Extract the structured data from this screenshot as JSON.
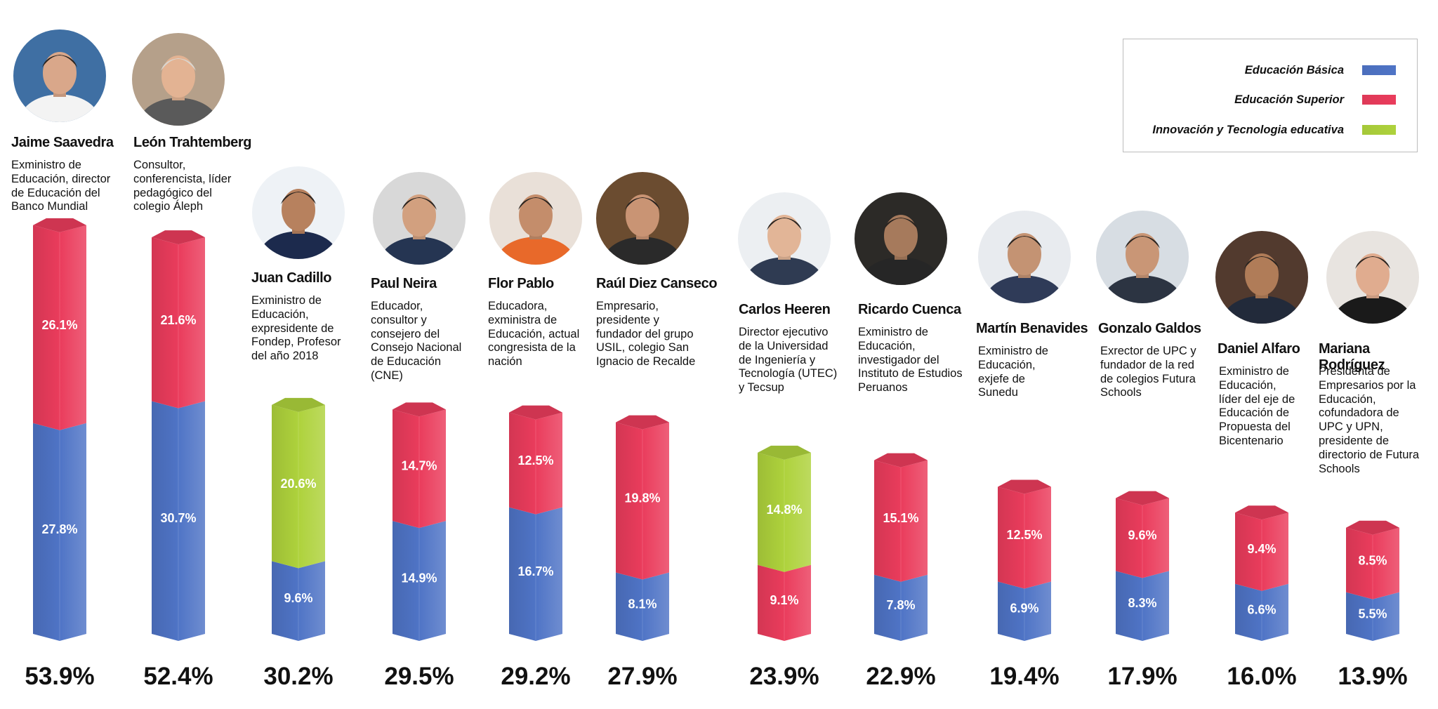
{
  "colors": {
    "basica": "#4f74c6",
    "superior": "#ea3c5c",
    "innovacion": "#aed23c"
  },
  "legend": [
    {
      "label": "Educación Básica",
      "color_key": "basica"
    },
    {
      "label": "Educación Superior",
      "color_key": "superior"
    },
    {
      "label": "Innovación y Tecnologia educativa",
      "color_key": "innovacion"
    }
  ],
  "people": [
    {
      "name": "Jaime Saavedra",
      "description": "Exministro de Educación, director de Educación del Banco Mundial"
    },
    {
      "name": "León Trahtemberg",
      "description": "Consultor, conferencista, líder pedagógico del colegio Áleph"
    },
    {
      "name": "Juan Cadillo",
      "description": "Exministro de Educación, expresidente de Fondep, Profesor del año 2018"
    },
    {
      "name": "Paul Neira",
      "description": "Educador, consultor y consejero del Consejo Nacional de Educación (CNE)"
    },
    {
      "name": "Flor Pablo",
      "description": "Educadora, exministra de Educación, actual congresista de la nación"
    },
    {
      "name": "Raúl Diez Canseco",
      "description": "Empresario, presidente y fundador del grupo USIL, colegio San Ignacio de Recalde"
    },
    {
      "name": "Carlos Heeren",
      "description": "Director ejecutivo de la Universidad de Ingeniería y Tecnología (UTEC) y Tecsup"
    },
    {
      "name": "Ricardo Cuenca",
      "description": "Exministro de Educación, investigador del Instituto de Estudios Peruanos"
    },
    {
      "name": "Martín Benavides",
      "description": "Exministro de Educación, exjefe de Sunedu"
    },
    {
      "name": "Gonzalo Galdos",
      "description": "Exrector de UPC y fundador de la red de colegios Futura Schools"
    },
    {
      "name": "Daniel Alfaro",
      "description": "Exministro de Educación, líder del eje de Educación de Propuesta del Bicentenario"
    },
    {
      "name": "Mariana Rodríguez",
      "description": "Presidenta de Empresarios por la Educación, cofundadora de UPC y UPN, presidente de directorio de Futura Schools"
    }
  ],
  "chart_data": {
    "type": "bar",
    "stacked": true,
    "categories": [
      "Jaime Saavedra",
      "León Trahtemberg",
      "Juan Cadillo",
      "Paul Neira",
      "Flor Pablo",
      "Raúl Diez Canseco",
      "Carlos Heeren",
      "Ricardo Cuenca",
      "Martín Benavides",
      "Gonzalo Galdos",
      "Daniel Alfaro",
      "Mariana Rodríguez"
    ],
    "series": [
      {
        "name": "Educación Básica",
        "color_key": "basica",
        "values": [
          27.8,
          30.7,
          9.6,
          14.9,
          16.7,
          8.1,
          null,
          7.8,
          6.9,
          8.3,
          6.6,
          5.5
        ],
        "labels": [
          "27.8%",
          "30.7%",
          "9.6%",
          "14.9%",
          "16.7%",
          "8.1%",
          null,
          "7.8%",
          "6.9%",
          "8.3%",
          "6.6%",
          "5.5%"
        ]
      },
      {
        "name": "Educación Superior",
        "color_key": "superior",
        "values": [
          26.1,
          21.6,
          null,
          14.7,
          12.5,
          19.8,
          9.1,
          15.1,
          12.5,
          9.6,
          9.4,
          8.5
        ],
        "labels": [
          "26.1%",
          "21.6%",
          null,
          "14.7%",
          "12.5%",
          "19.8%",
          "9.1%",
          "15.1%",
          "12.5%",
          "9.6%",
          "9.4%",
          "8.5%"
        ]
      },
      {
        "name": "Innovación y Tecnologia educativa",
        "color_key": "innovacion",
        "values": [
          null,
          null,
          20.6,
          null,
          null,
          null,
          14.8,
          null,
          null,
          null,
          null,
          null
        ],
        "labels": [
          null,
          null,
          "20.6%",
          null,
          null,
          null,
          "14.8%",
          null,
          null,
          null,
          null,
          null
        ]
      }
    ],
    "totals": [
      53.9,
      52.4,
      30.2,
      29.5,
      29.2,
      27.9,
      23.9,
      22.9,
      19.4,
      17.9,
      16.0,
      13.9
    ],
    "total_labels": [
      "53.9%",
      "52.4%",
      "30.2%",
      "29.5%",
      "29.2%",
      "27.9%",
      "23.9%",
      "22.9%",
      "19.4%",
      "17.9%",
      "16.0%",
      "13.9%"
    ],
    "segment_order": [
      [
        "basica",
        "superior"
      ],
      [
        "basica",
        "superior"
      ],
      [
        "basica",
        "innovacion"
      ],
      [
        "basica",
        "superior"
      ],
      [
        "basica",
        "superior"
      ],
      [
        "basica",
        "superior"
      ],
      [
        "superior",
        "innovacion"
      ],
      [
        "basica",
        "superior"
      ],
      [
        "basica",
        "superior"
      ],
      [
        "basica",
        "superior"
      ],
      [
        "basica",
        "superior"
      ],
      [
        "basica",
        "superior"
      ]
    ]
  }
}
